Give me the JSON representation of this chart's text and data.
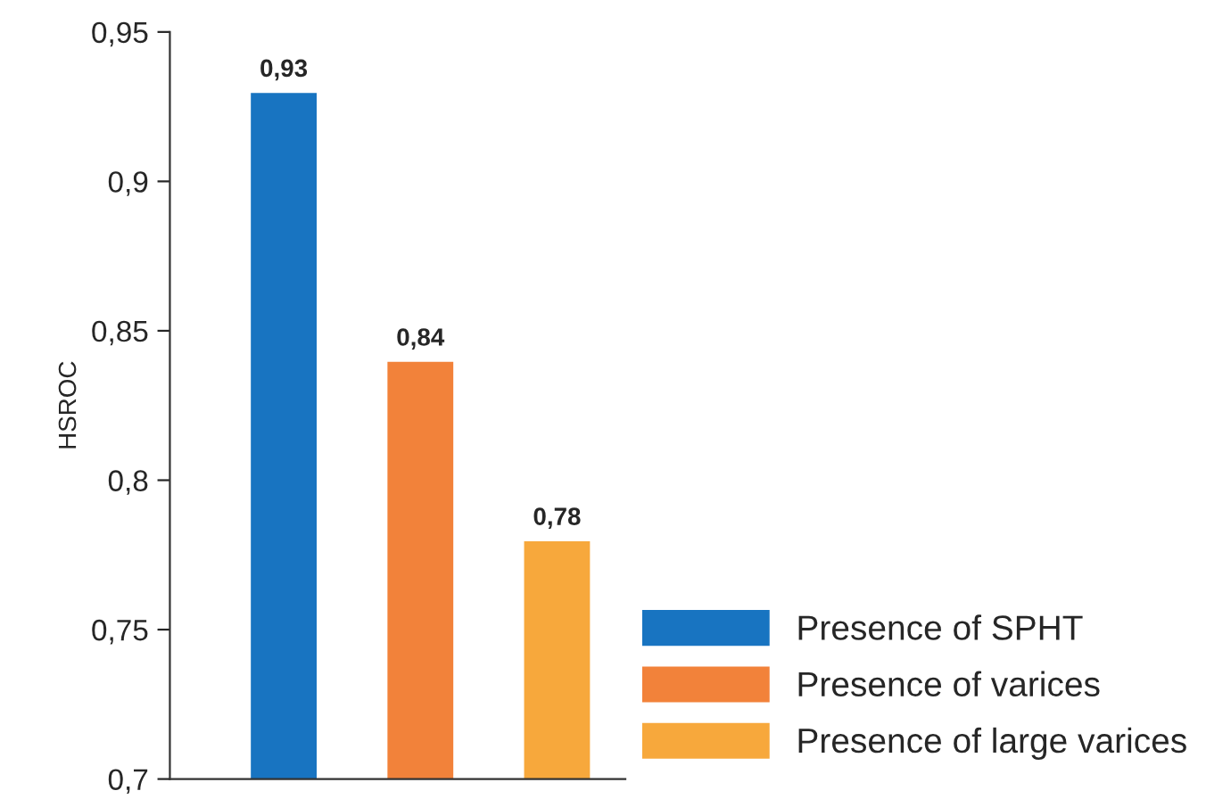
{
  "chart_data": {
    "type": "bar",
    "ylabel": "HSROC",
    "categories": [
      null
    ],
    "series": [
      {
        "name": "Presence of SPHT",
        "color": "#1874c1",
        "values": [
          0.93
        ],
        "value_labels": [
          "0,93"
        ]
      },
      {
        "name": "Presence of varices",
        "color": "#f2823a",
        "values": [
          0.84
        ],
        "value_labels": [
          "0,84"
        ]
      },
      {
        "name": "Presence of large varices",
        "color": "#f7a83c",
        "values": [
          0.78
        ],
        "value_labels": [
          "0,78"
        ]
      }
    ],
    "ylim": [
      0.7,
      0.95
    ],
    "yticks": [
      {
        "value": 0.7,
        "label": "0,7"
      },
      {
        "value": 0.75,
        "label": "0,75"
      },
      {
        "value": 0.8,
        "label": "0,8"
      },
      {
        "value": 0.85,
        "label": "0,85"
      },
      {
        "value": 0.9,
        "label": "0,9"
      },
      {
        "value": 0.95,
        "label": "0,95"
      }
    ],
    "grid": false,
    "legend": "bottom right"
  }
}
